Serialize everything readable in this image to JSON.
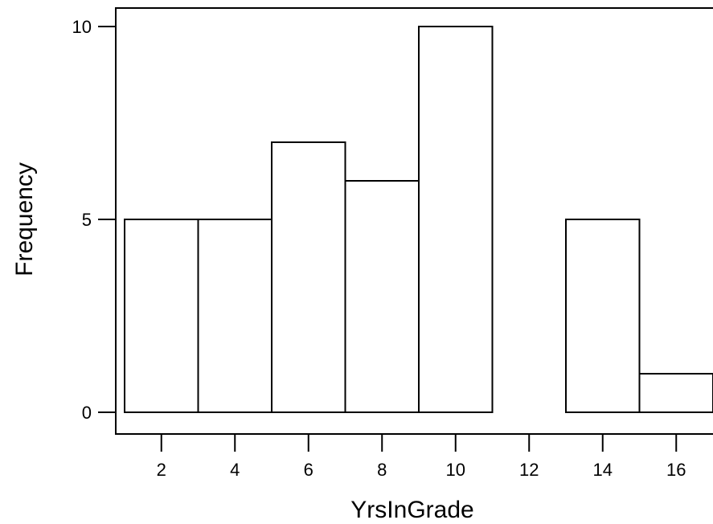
{
  "chart_data": {
    "type": "bar",
    "title": "",
    "xlabel": "YrsInGrade",
    "ylabel": "Frequency",
    "bins": [
      {
        "start": 1,
        "end": 3,
        "count": 5
      },
      {
        "start": 3,
        "end": 5,
        "count": 5
      },
      {
        "start": 5,
        "end": 7,
        "count": 7
      },
      {
        "start": 7,
        "end": 9,
        "count": 6
      },
      {
        "start": 9,
        "end": 11,
        "count": 10
      },
      {
        "start": 11,
        "end": 13,
        "count": 0
      },
      {
        "start": 13,
        "end": 15,
        "count": 5
      },
      {
        "start": 15,
        "end": 17,
        "count": 1
      }
    ],
    "xticks": [
      2,
      4,
      6,
      8,
      10,
      12,
      14,
      16
    ],
    "yticks": [
      0,
      5,
      10
    ],
    "xlim": [
      1,
      17
    ],
    "ylim": [
      0,
      10
    ],
    "grid": false,
    "colors": {
      "bar_fill": "#ffffff",
      "bar_stroke": "#000000"
    }
  }
}
